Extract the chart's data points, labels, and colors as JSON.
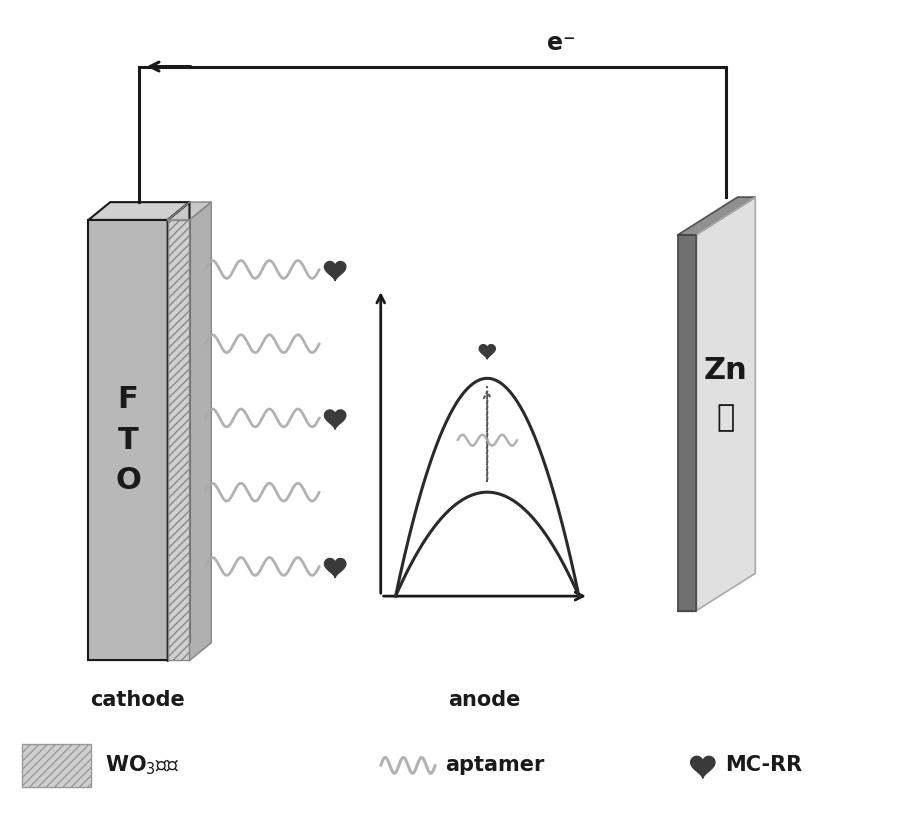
{
  "bg_color": "#ffffff",
  "fto_label": "F\nT\nO",
  "zn_label": "Zn\n片",
  "cathode_label": "cathode",
  "anode_label": "anode",
  "electron_label": "e⁻",
  "wire_color": "#1a1a1a",
  "fto_face_color": "#b8b8b8",
  "fto_top_color": "#d0d0d0",
  "fto_side_color": "#909090",
  "wo3_face_color": "#c0c0c0",
  "wo3_hatch": "////",
  "zn_bar_color": "#707070",
  "zn_panel_color": "#e0e0e0",
  "zn_panel_edge": "#aaaaaa",
  "wavy_color": "#aaaaaa",
  "heart_color": "#3a3a3a",
  "curve_color": "#2a2a2a",
  "dotted_color": "#555555",
  "inner_wavy_color": "#aaaaaa",
  "label_color": "#1a1a1a",
  "legend_hatch_color": "#aaaaaa"
}
